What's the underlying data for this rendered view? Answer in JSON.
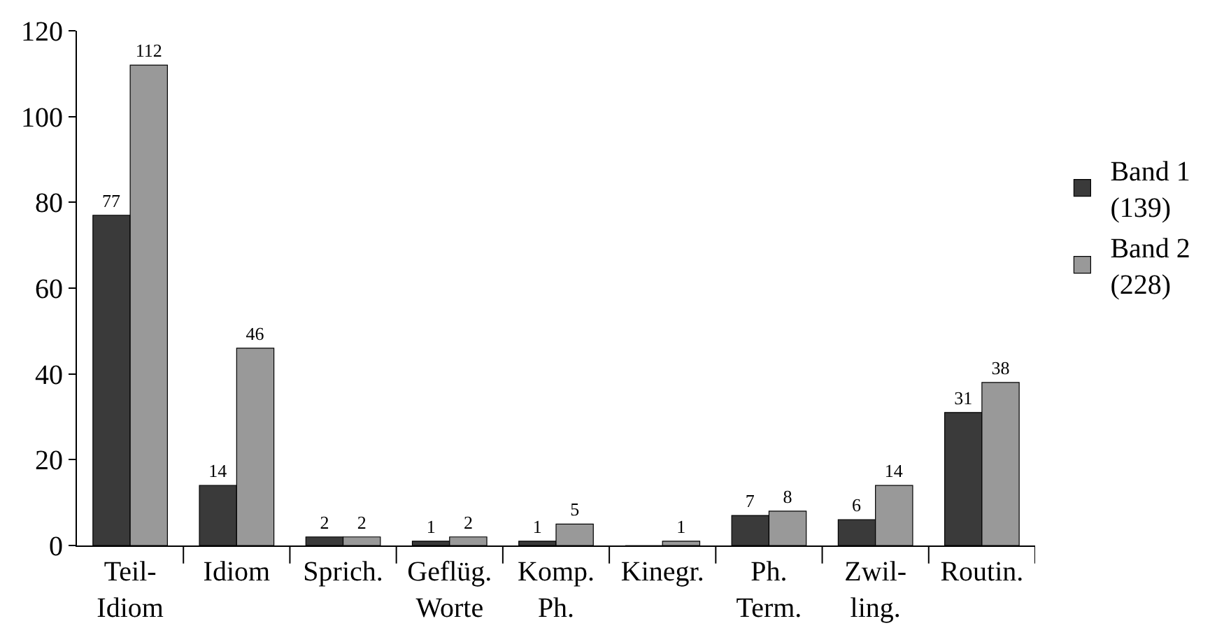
{
  "chart_data": {
    "type": "bar",
    "categories": [
      "Teil-\nIdiom",
      "Idiom",
      "Sprich.",
      "Geflüg.\nWorte",
      "Komp.\nPh.",
      "Kinegr.",
      "Ph.\nTerm.",
      "Zwil-\nling.",
      "Routin."
    ],
    "series": [
      {
        "name": "Band 1\n(139)",
        "color": "#3a3a3a",
        "values": [
          77,
          14,
          2,
          1,
          1,
          0,
          7,
          6,
          31
        ],
        "value_labels": [
          "77",
          "14",
          "2",
          "1",
          "1",
          null,
          "7",
          "6",
          "31"
        ]
      },
      {
        "name": "Band 2\n(228)",
        "color": "#999999",
        "values": [
          112,
          46,
          2,
          2,
          5,
          1,
          8,
          14,
          38
        ],
        "value_labels": [
          "112",
          "46",
          "2",
          "2",
          "5",
          "1",
          "8",
          "14",
          "38"
        ]
      }
    ],
    "ylim": [
      0,
      120
    ],
    "yticks": [
      0,
      20,
      40,
      60,
      80,
      100,
      120
    ],
    "grid": false,
    "legend": "right"
  }
}
